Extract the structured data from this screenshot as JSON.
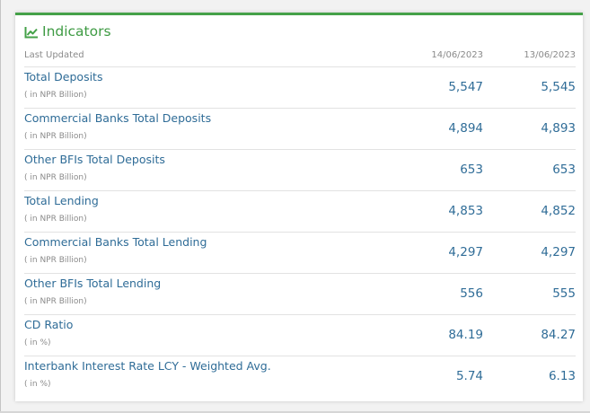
{
  "colors": {
    "accent_green": "#44a148",
    "link_blue": "#2f6c97",
    "muted_gray": "#8a8a8a"
  },
  "card": {
    "icon": "line-chart-icon",
    "title": "Indicators"
  },
  "table": {
    "header": {
      "label": "Last Updated",
      "date1": "14/06/2023",
      "date2": "13/06/2023"
    },
    "rows": [
      {
        "label": "Total Deposits",
        "unit": "( in NPR Billion)",
        "value1": "5,547",
        "value2": "5,545"
      },
      {
        "label": "Commercial Banks Total Deposits",
        "unit": "( in NPR Billion)",
        "value1": "4,894",
        "value2": "4,893"
      },
      {
        "label": "Other BFIs Total Deposits",
        "unit": "( in NPR Billion)",
        "value1": "653",
        "value2": "653"
      },
      {
        "label": "Total Lending",
        "unit": "( in NPR Billion)",
        "value1": "4,853",
        "value2": "4,852"
      },
      {
        "label": "Commercial Banks Total Lending",
        "unit": "( in NPR Billion)",
        "value1": "4,297",
        "value2": "4,297"
      },
      {
        "label": "Other BFIs Total Lending",
        "unit": "( in NPR Billion)",
        "value1": "556",
        "value2": "555"
      },
      {
        "label": "CD Ratio",
        "unit": "( in %)",
        "value1": "84.19",
        "value2": "84.27"
      },
      {
        "label": "Interbank Interest Rate LCY - Weighted Avg.",
        "unit": "( in %)",
        "value1": "5.74",
        "value2": "6.13"
      }
    ]
  }
}
